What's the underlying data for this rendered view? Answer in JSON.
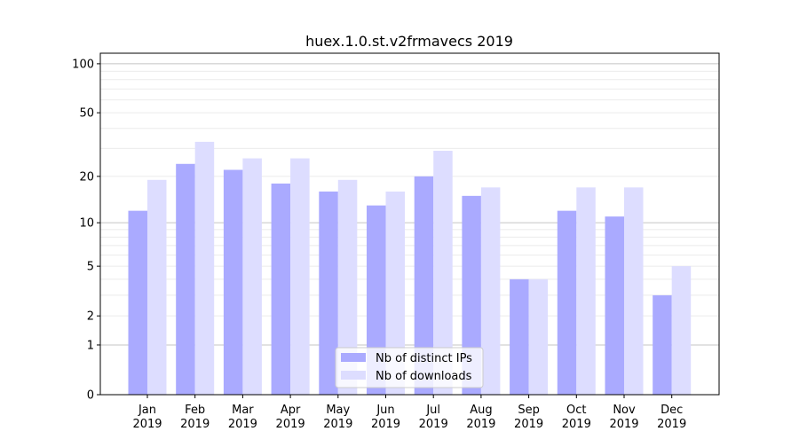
{
  "chart_data": {
    "type": "bar",
    "title": "huex.1.0.st.v2frmavecs 2019",
    "xlabel": "",
    "ylabel": "",
    "yscale": "symlog (log10(1+y))",
    "ylim": [
      0,
      116
    ],
    "yticks": [
      0,
      1,
      2,
      5,
      10,
      20,
      50,
      100
    ],
    "grid": true,
    "legend_position": "bottom-center",
    "categories": [
      "Jan\n2019",
      "Feb\n2019",
      "Mar\n2019",
      "Apr\n2019",
      "May\n2019",
      "Jun\n2019",
      "Jul\n2019",
      "Aug\n2019",
      "Sep\n2019",
      "Oct\n2019",
      "Nov\n2019",
      "Dec\n2019"
    ],
    "series": [
      {
        "name": "Nb of distinct IPs",
        "color": "#aaaaff",
        "values": [
          12,
          24,
          22,
          18,
          16,
          13,
          20,
          15,
          4,
          12,
          11,
          3
        ]
      },
      {
        "name": "Nb of downloads",
        "color": "#ddddff",
        "values": [
          19,
          33,
          26,
          26,
          19,
          16,
          29,
          17,
          4,
          17,
          17,
          5
        ]
      }
    ]
  }
}
